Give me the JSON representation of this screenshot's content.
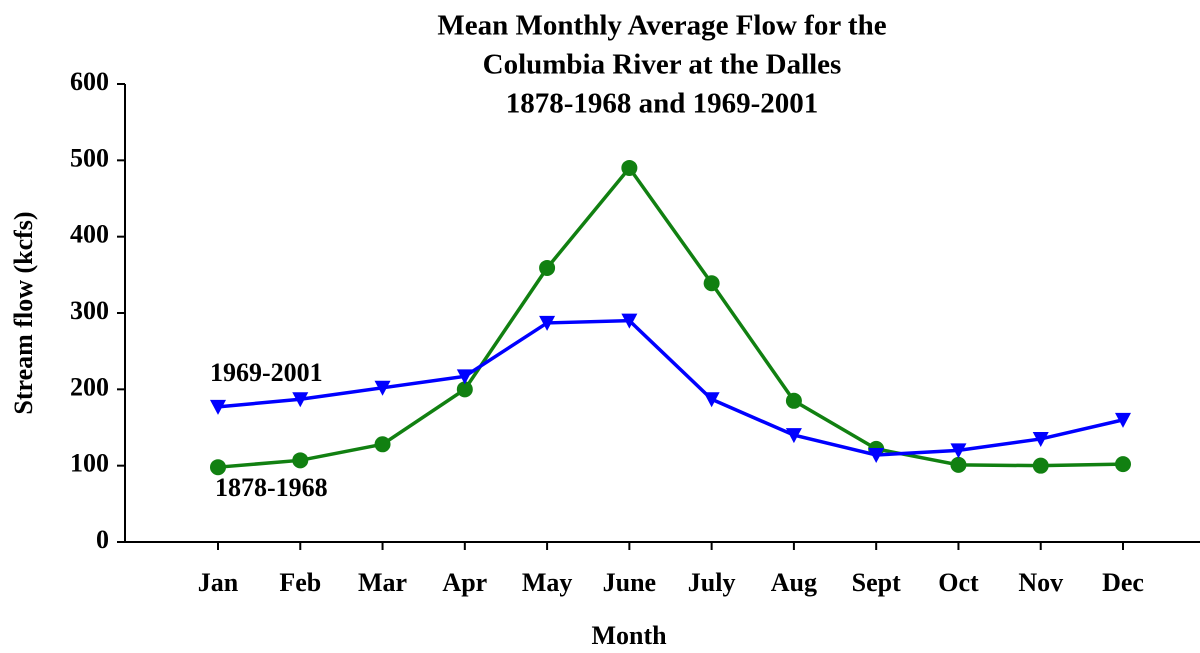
{
  "chart_data": {
    "type": "line",
    "title": [
      "Mean Monthly Average Flow for the",
      "Columbia River at the Dalles",
      "1878-1968 and 1969-2001"
    ],
    "xlabel": "Month",
    "ylabel": "Stream flow (kcfs)",
    "categories": [
      "Jan",
      "Feb",
      "Mar",
      "Apr",
      "May",
      "June",
      "July",
      "Aug",
      "Sept",
      "Oct",
      "Nov",
      "Dec"
    ],
    "series": [
      {
        "name": "1878-1968",
        "color": "#118011",
        "marker": "circle",
        "values": [
          98,
          107,
          128,
          200,
          359,
          490,
          339,
          185,
          122,
          101,
          100,
          102
        ]
      },
      {
        "name": "1969-2001",
        "color": "#0000ff",
        "marker": "triangle-down",
        "values": [
          177,
          187,
          202,
          217,
          287,
          290,
          187,
          140,
          114,
          120,
          135,
          160
        ]
      }
    ],
    "ylim": [
      0,
      600
    ],
    "yticks": [
      0,
      100,
      200,
      300,
      400,
      500,
      600
    ],
    "grid": false
  }
}
